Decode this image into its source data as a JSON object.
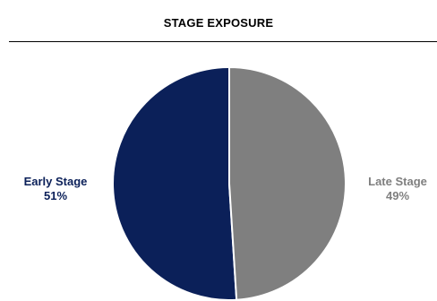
{
  "chart_data": {
    "type": "pie",
    "title": "STAGE EXPOSURE",
    "slices": [
      {
        "label": "Early Stage",
        "value": 51,
        "value_label": "51%",
        "color": "#0b2059"
      },
      {
        "label": "Late Stage",
        "value": 49,
        "value_label": "49%",
        "color": "#7f7f7f"
      }
    ],
    "start_angle_deg": 0,
    "direction": "counterclockwise-from-top",
    "slice_border_color": "#ffffff"
  }
}
